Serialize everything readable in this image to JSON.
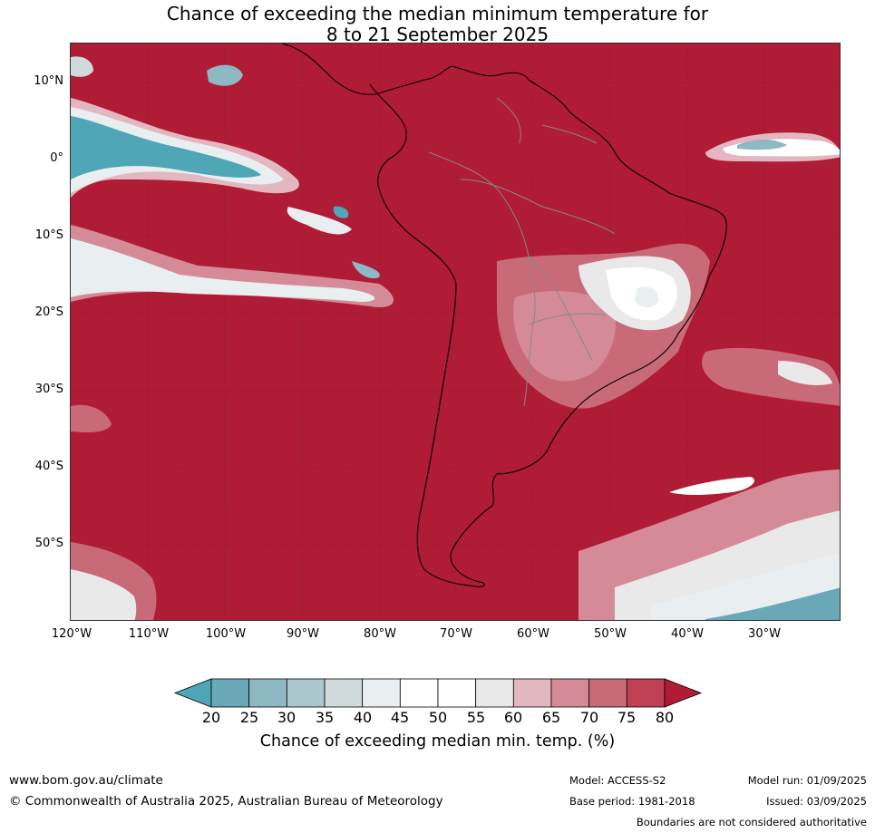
{
  "title_line1": "Chance of exceeding the median minimum temperature for",
  "title_line2": "8 to 21 September 2025",
  "lat_labels": [
    "10°N",
    "0°",
    "10°S",
    "20°S",
    "30°S",
    "40°S",
    "50°S"
  ],
  "lon_labels": [
    "120°W",
    "110°W",
    "100°W",
    "90°W",
    "80°W",
    "70°W",
    "60°W",
    "50°W",
    "40°W",
    "30°W"
  ],
  "legend": {
    "ticks": [
      "20",
      "25",
      "30",
      "35",
      "40",
      "45",
      "50",
      "55",
      "60",
      "65",
      "70",
      "75",
      "80"
    ],
    "colors": [
      "#4fa6b6",
      "#6ba8b7",
      "#8db8c4",
      "#abc6cc",
      "#d0d9db",
      "#e9eff1",
      "#ffffff",
      "#ffffff",
      "#e9e9ea",
      "#e3b7bf",
      "#d58b97",
      "#c96a78",
      "#bd4053",
      "#b01b35"
    ],
    "label": "Chance of exceeding median min. temp. (%)"
  },
  "footer": {
    "url": "www.bom.gov.au/climate",
    "copyright": "© Commonwealth of Australia 2025, Australian Bureau of Meteorology",
    "model": "Model: ACCESS-S2",
    "base_period": "Base period: 1981-2018",
    "model_run": "Model run: 01/09/2025",
    "issued": "Issued: 03/09/2025",
    "boundaries": "Boundaries are not considered authoritative"
  }
}
